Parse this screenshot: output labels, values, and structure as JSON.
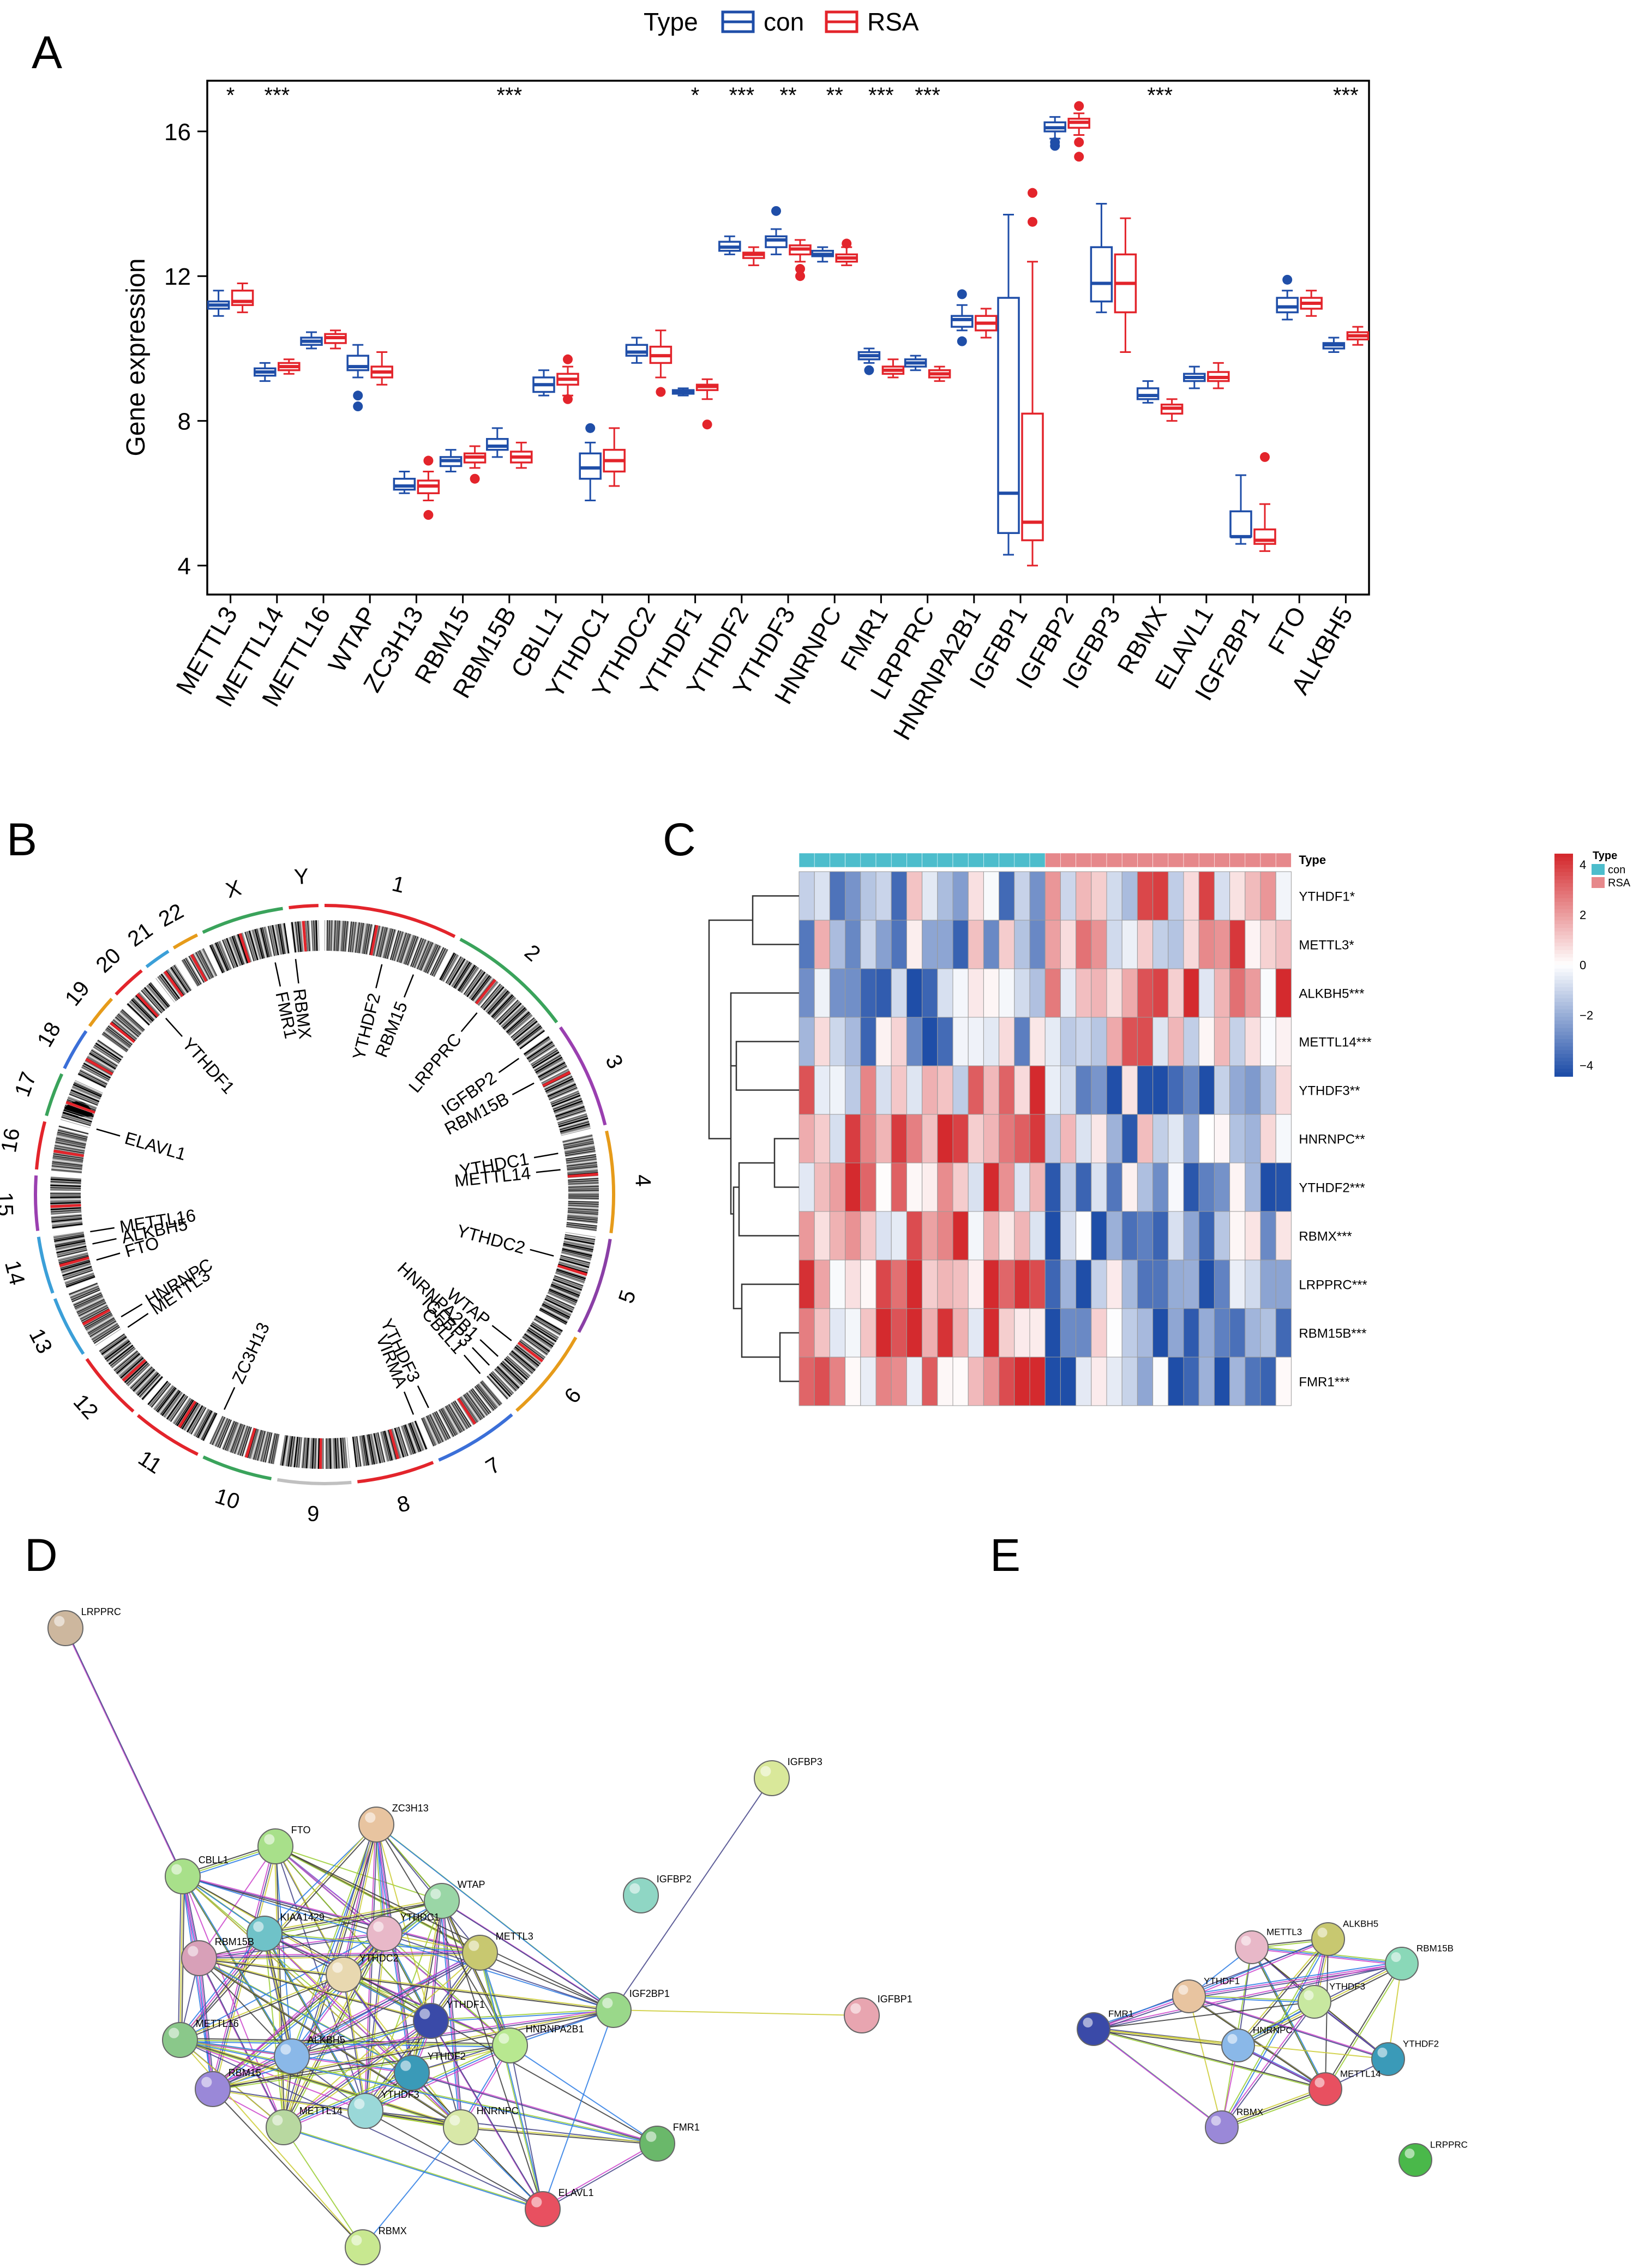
{
  "panels": {
    "a": "A",
    "b": "B",
    "c": "C",
    "d": "D",
    "e": "E"
  },
  "colors": {
    "con": "#1f4ea8",
    "rsa": "#e3242b",
    "cyan": "#4dbdcc",
    "pink": "#e6888b",
    "heat_high": "#d42a2e",
    "heat_low": "#1f4ea8"
  },
  "chart_data": [
    {
      "type": "boxplot",
      "legend": {
        "title": "Type",
        "items": [
          "con",
          "RSA"
        ]
      },
      "ylabel": "Gene expression",
      "ylim": [
        3.2,
        17.4
      ],
      "yticks": [
        "4",
        "8",
        "12",
        "16"
      ],
      "categories": [
        "METTL3",
        "METTL14",
        "METTL16",
        "WTAP",
        "ZC3H13",
        "RBM15",
        "RBM15B",
        "CBLL1",
        "YTHDC1",
        "YTHDC2",
        "YTHDF1",
        "YTHDF2",
        "YTHDF3",
        "HNRNPC",
        "FMR1",
        "LRPPRC",
        "HNRNPA2B1",
        "IGFBP1",
        "IGFBP2",
        "IGFBP3",
        "RBMX",
        "ELAVL1",
        "IGF2BP1",
        "FTO",
        "ALKBH5"
      ],
      "significance": [
        "*",
        "***",
        "",
        "",
        "",
        "",
        "***",
        "",
        "",
        "",
        "*",
        "***",
        "**",
        "**",
        "***",
        "***",
        "",
        "",
        "",
        "",
        "***",
        "",
        "",
        "",
        "***"
      ],
      "series": [
        {
          "name": "con",
          "stats": [
            [
              10.9,
              11.1,
              11.2,
              11.3,
              11.6
            ],
            [
              9.1,
              9.25,
              9.35,
              9.45,
              9.6
            ],
            [
              10.0,
              10.1,
              10.2,
              10.3,
              10.45
            ],
            [
              9.2,
              9.4,
              9.5,
              9.8,
              10.1
            ],
            [
              6.0,
              6.1,
              6.2,
              6.4,
              6.6
            ],
            [
              6.6,
              6.75,
              6.9,
              7.0,
              7.2
            ],
            [
              7.0,
              7.2,
              7.3,
              7.5,
              7.8
            ],
            [
              8.7,
              8.8,
              9.0,
              9.2,
              9.4
            ],
            [
              5.8,
              6.4,
              6.7,
              7.1,
              7.4
            ],
            [
              9.6,
              9.8,
              9.9,
              10.1,
              10.3
            ],
            [
              8.7,
              8.75,
              8.8,
              8.85,
              8.9
            ],
            [
              12.6,
              12.7,
              12.8,
              12.95,
              13.1
            ],
            [
              12.6,
              12.8,
              13.0,
              13.1,
              13.3
            ],
            [
              12.4,
              12.55,
              12.6,
              12.7,
              12.8
            ],
            [
              9.6,
              9.7,
              9.8,
              9.9,
              10.0
            ],
            [
              9.4,
              9.5,
              9.6,
              9.7,
              9.8
            ],
            [
              10.5,
              10.6,
              10.8,
              10.9,
              11.2
            ],
            [
              4.3,
              4.9,
              6.0,
              11.4,
              13.7
            ],
            [
              15.8,
              16.0,
              16.1,
              16.25,
              16.4
            ],
            [
              11.0,
              11.3,
              11.8,
              12.8,
              14.0
            ],
            [
              8.5,
              8.6,
              8.7,
              8.9,
              9.1
            ],
            [
              8.9,
              9.1,
              9.2,
              9.3,
              9.5
            ],
            [
              4.6,
              4.8,
              4.8,
              5.5,
              6.5
            ],
            [
              10.8,
              11.0,
              11.15,
              11.4,
              11.6
            ],
            [
              9.9,
              10.0,
              10.1,
              10.15,
              10.3
            ]
          ],
          "outliers": [
            [],
            [],
            [],
            [
              8.4,
              8.7
            ],
            [],
            [],
            [],
            [],
            [
              7.8
            ],
            [],
            [],
            [],
            [
              13.8
            ],
            [],
            [
              9.4
            ],
            [],
            [
              10.2,
              11.5
            ],
            [],
            [
              15.6,
              15.7
            ],
            [],
            [],
            [],
            [],
            [
              11.9
            ],
            []
          ]
        },
        {
          "name": "RSA",
          "stats": [
            [
              11.0,
              11.2,
              11.3,
              11.6,
              11.8
            ],
            [
              9.3,
              9.4,
              9.5,
              9.6,
              9.7
            ],
            [
              10.0,
              10.15,
              10.3,
              10.4,
              10.5
            ],
            [
              9.0,
              9.2,
              9.35,
              9.5,
              9.9
            ],
            [
              5.8,
              6.0,
              6.2,
              6.35,
              6.6
            ],
            [
              6.7,
              6.85,
              7.0,
              7.1,
              7.3
            ],
            [
              6.7,
              6.85,
              7.0,
              7.15,
              7.4
            ],
            [
              8.7,
              9.0,
              9.15,
              9.3,
              9.5
            ],
            [
              6.2,
              6.6,
              6.9,
              7.2,
              7.8
            ],
            [
              9.2,
              9.6,
              9.8,
              10.05,
              10.5
            ],
            [
              8.6,
              8.85,
              8.95,
              9.0,
              9.15
            ],
            [
              12.3,
              12.5,
              12.6,
              12.65,
              12.8
            ],
            [
              12.4,
              12.6,
              12.75,
              12.85,
              13.0
            ],
            [
              12.3,
              12.4,
              12.5,
              12.6,
              12.8
            ],
            [
              9.2,
              9.3,
              9.4,
              9.5,
              9.7
            ],
            [
              9.1,
              9.2,
              9.3,
              9.4,
              9.5
            ],
            [
              10.3,
              10.5,
              10.7,
              10.9,
              11.1
            ],
            [
              4.0,
              4.7,
              5.2,
              8.2,
              12.4
            ],
            [
              15.9,
              16.1,
              16.25,
              16.35,
              16.5
            ],
            [
              9.9,
              11.0,
              11.8,
              12.6,
              13.6
            ],
            [
              8.0,
              8.2,
              8.35,
              8.45,
              8.6
            ],
            [
              8.9,
              9.1,
              9.2,
              9.35,
              9.6
            ],
            [
              4.4,
              4.6,
              4.7,
              5.0,
              5.7
            ],
            [
              10.9,
              11.1,
              11.25,
              11.4,
              11.6
            ],
            [
              10.1,
              10.25,
              10.35,
              10.45,
              10.6
            ]
          ],
          "outliers": [
            [],
            [],
            [],
            [],
            [
              5.4,
              6.9
            ],
            [
              6.4
            ],
            [],
            [
              8.6,
              9.7
            ],
            [],
            [
              8.8
            ],
            [
              7.9
            ],
            [],
            [
              12.2,
              12.0
            ],
            [
              12.9
            ],
            [],
            [],
            [],
            [
              14.3,
              13.5
            ],
            [
              15.3,
              15.7,
              16.7
            ],
            [],
            [],
            [],
            [
              7.0
            ],
            [],
            []
          ]
        }
      ]
    },
    {
      "type": "circos",
      "chromosomes": [
        "1",
        "2",
        "3",
        "4",
        "5",
        "6",
        "7",
        "8",
        "9",
        "10",
        "11",
        "12",
        "13",
        "14",
        "15",
        "16",
        "17",
        "18",
        "19",
        "20",
        "21",
        "22",
        "X",
        "Y"
      ],
      "genes": [
        "YTHDF2",
        "RBM15",
        "LRPPRC",
        "IGFBP2",
        "RBM15B",
        "YTHDC1",
        "METTL14",
        "YTHDC2",
        "WTAP",
        "HNRNPA2B1",
        "IGFBP3",
        "CBLL1",
        "YTHDF3",
        "VIRMA",
        "ZC3H13",
        "METTL3",
        "HNRNPC",
        "FTO",
        "ALKBH5",
        "METTL16",
        "ELAVL1",
        "YTHDF1",
        "FMR1",
        "RBMX"
      ]
    },
    {
      "type": "heatmap",
      "rows": [
        "YTHDF1*",
        "METTL3*",
        "ALKBH5***",
        "METTL14***",
        "YTHDF3**",
        "HNRNPC**",
        "YTHDF2***",
        "RBMX***",
        "LRPPRC***",
        "RBM15B***",
        "FMR1***"
      ],
      "annotation_label": "Type",
      "legend_title": "Type",
      "legend_items": [
        "con",
        "RSA"
      ],
      "scale_ticks": [
        "4",
        "2",
        "0",
        "−2",
        "−4"
      ],
      "n_con": 16,
      "n_rsa": 16
    }
  ],
  "networks": {
    "d": [
      "LRPPRC",
      "IGFBP3",
      "IGFBP2",
      "IGFBP1",
      "FTO",
      "ZC3H13",
      "CBLL1",
      "WTAP",
      "YTHDC1",
      "KIAA1429",
      "RBM15B",
      "YTHDC2",
      "METTL3",
      "IGF2BP1",
      "METTL16",
      "YTHDF1",
      "HNRNPA2B1",
      "ALKBH5",
      "YTHDF2",
      "RBM15",
      "YTHDF3",
      "METTL14",
      "HNRNPC",
      "FMR1",
      "ELAVL1",
      "RBMX"
    ],
    "e": [
      "METTL3",
      "ALKBH5",
      "RBM15B",
      "YTHDF1",
      "YTHDF3",
      "FMR1",
      "HNRNPC",
      "YTHDF2",
      "METTL14",
      "RBMX",
      "LRPPRC"
    ]
  }
}
